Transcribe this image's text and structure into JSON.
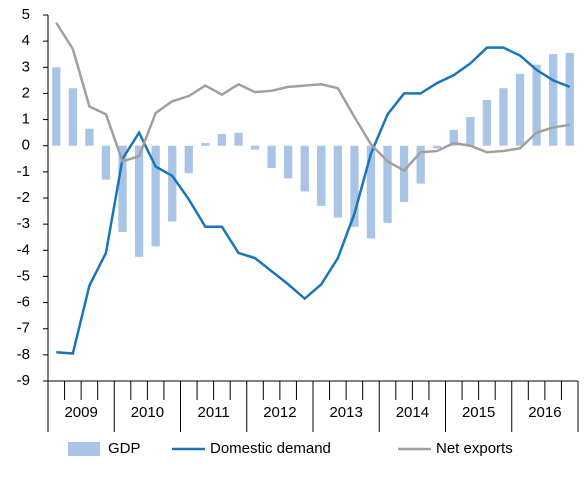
{
  "chart_data": {
    "type": "bar_line",
    "categories": [
      null,
      null,
      null,
      null,
      null,
      null,
      null,
      null,
      null,
      null,
      null,
      null,
      null,
      null,
      null,
      null,
      null,
      null,
      null,
      null,
      null,
      null,
      null,
      null,
      null,
      null,
      null,
      null,
      null,
      null,
      null,
      null
    ],
    "year_labels": [
      "2009",
      "2010",
      "2011",
      "2012",
      "2013",
      "2014",
      "2015",
      "2016"
    ],
    "series": [
      {
        "name": "GDP",
        "type": "bar",
        "color": "#a9c4e4",
        "values": [
          3.0,
          2.2,
          0.65,
          -1.3,
          -3.3,
          -4.25,
          -3.85,
          -2.9,
          -1.05,
          0.1,
          0.45,
          0.5,
          -0.15,
          -0.85,
          -1.25,
          -1.75,
          -2.3,
          -2.75,
          -3.1,
          -3.55,
          -2.95,
          -2.15,
          -1.45,
          -0.1,
          0.6,
          1.1,
          1.75,
          2.2,
          2.75,
          3.1,
          3.5,
          3.55
        ]
      },
      {
        "name": "Domestic demand",
        "type": "line",
        "color": "#1b75bb",
        "values": [
          -7.9,
          -7.95,
          -5.35,
          -4.1,
          -0.5,
          0.5,
          -0.8,
          -1.15,
          -2.05,
          -3.1,
          -3.1,
          -4.1,
          -4.3,
          -4.8,
          -5.3,
          -5.85,
          -5.3,
          -4.3,
          -2.6,
          -0.3,
          1.2,
          2.0,
          2.0,
          2.4,
          2.7,
          3.15,
          3.75,
          3.75,
          3.45,
          2.9,
          2.5,
          2.25
        ]
      },
      {
        "name": "Net exports",
        "type": "line",
        "color": "#a0a0a0",
        "values": [
          4.7,
          3.7,
          1.5,
          1.2,
          -0.6,
          -0.4,
          1.25,
          1.7,
          1.9,
          2.3,
          1.95,
          2.35,
          2.05,
          2.1,
          2.25,
          2.3,
          2.35,
          2.2,
          1.1,
          0.05,
          -0.6,
          -0.95,
          -0.25,
          -0.2,
          0.1,
          0,
          -0.25,
          -0.2,
          -0.1,
          0.5,
          0.7,
          0.8
        ]
      }
    ],
    "ylim": [
      -9,
      5
    ],
    "yticks": [
      -9,
      -8,
      -7,
      -6,
      -5,
      -4,
      -3,
      -2,
      -1,
      0,
      1,
      2,
      3,
      4,
      5
    ]
  }
}
